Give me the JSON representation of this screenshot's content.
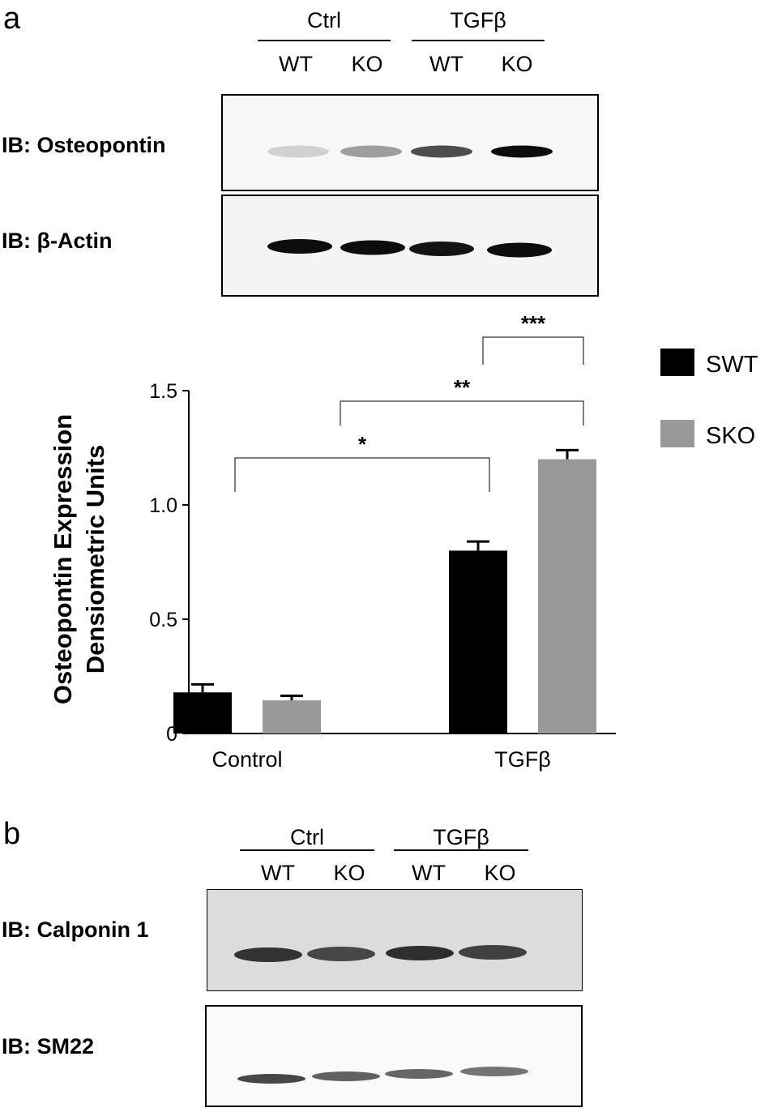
{
  "panel_a": {
    "letter": "a",
    "groups": [
      "Ctrl",
      "TGFβ"
    ],
    "lanes": [
      "WT",
      "KO",
      "WT",
      "KO"
    ],
    "blots": [
      {
        "label": "IB: Osteopontin",
        "band_intensity": [
          0.18,
          0.38,
          0.7,
          0.95
        ]
      },
      {
        "label": "IB: β-Actin",
        "band_intensity": [
          0.95,
          0.95,
          0.92,
          0.95
        ]
      }
    ]
  },
  "chart_data": {
    "type": "bar",
    "categories": [
      "Control",
      "TGFβ"
    ],
    "series": [
      {
        "name": "SWT",
        "color": "#000000",
        "values": [
          0.18,
          0.8
        ],
        "errors": [
          0.035,
          0.04
        ]
      },
      {
        "name": "SKO",
        "color": "#999999",
        "values": [
          0.145,
          1.2
        ],
        "errors": [
          0.02,
          0.04
        ]
      }
    ],
    "ylabel_line1": "Osteopontin Expression",
    "ylabel_line2": "Densiometric Units",
    "ylim": [
      0,
      1.5
    ],
    "yticks": [
      "0",
      "0.5",
      "1.0",
      "1.5"
    ],
    "ytick_values": [
      0,
      0.5,
      1.0,
      1.5
    ],
    "legend_position": "top-right",
    "significance": [
      {
        "label": "*"
      },
      {
        "label": "**"
      },
      {
        "label": "***"
      }
    ]
  },
  "panel_b": {
    "letter": "b",
    "groups": [
      "Ctrl",
      "TGFβ"
    ],
    "lanes": [
      "WT",
      "KO",
      "WT",
      "KO"
    ],
    "blots": [
      {
        "label": "IB: Calponin 1",
        "band_intensity": [
          0.8,
          0.72,
          0.82,
          0.75
        ]
      },
      {
        "label": "IB: SM22",
        "band_intensity": [
          0.72,
          0.62,
          0.6,
          0.55
        ]
      }
    ]
  }
}
